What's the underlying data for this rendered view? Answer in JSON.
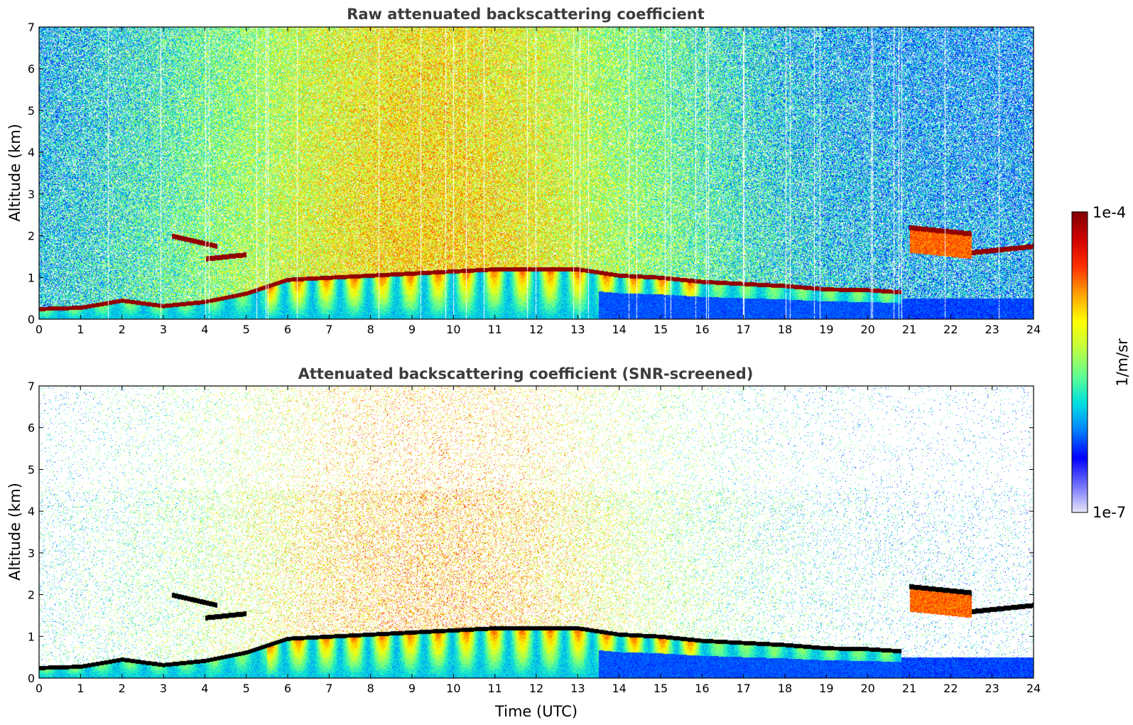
{
  "chart_data": [
    {
      "type": "heatmap",
      "title": "Raw attenuated backscattering coefficient",
      "xlabel": "",
      "ylabel": "Altitude (km)",
      "xlim": [
        0,
        24
      ],
      "ylim": [
        0,
        7
      ],
      "x_ticks": [
        "0",
        "1",
        "2",
        "3",
        "4",
        "5",
        "6",
        "7",
        "8",
        "9",
        "10",
        "11",
        "12",
        "13",
        "14",
        "15",
        "16",
        "17",
        "18",
        "19",
        "20",
        "21",
        "22",
        "23",
        "24"
      ],
      "y_ticks": [
        "0",
        "1",
        "2",
        "3",
        "4",
        "5",
        "6",
        "7"
      ],
      "screened": false
    },
    {
      "type": "heatmap",
      "title": "Attenuated backscattering coefficient (SNR-screened)",
      "xlabel": "Time (UTC)",
      "ylabel": "Altitude (km)",
      "xlim": [
        0,
        24
      ],
      "ylim": [
        0,
        7
      ],
      "x_ticks": [
        "0",
        "1",
        "2",
        "3",
        "4",
        "5",
        "6",
        "7",
        "8",
        "9",
        "10",
        "11",
        "12",
        "13",
        "14",
        "15",
        "16",
        "17",
        "18",
        "19",
        "20",
        "21",
        "22",
        "23",
        "24"
      ],
      "y_ticks": [
        "0",
        "1",
        "2",
        "3",
        "4",
        "5",
        "6",
        "7"
      ],
      "screened": true
    }
  ],
  "colorbar": {
    "label": "1/m/sr",
    "max_label": "1e-4",
    "min_label": "1e-7",
    "scale": "log",
    "colormap": "jet",
    "colors": [
      "#e8e8f8",
      "#7070ff",
      "#0000ff",
      "#0080ff",
      "#00e0e0",
      "#60ff90",
      "#c0ff40",
      "#ffff00",
      "#ffa000",
      "#ff3000",
      "#d00000",
      "#800000"
    ]
  },
  "features": {
    "cloud_layer": [
      [
        0,
        0.25
      ],
      [
        1,
        0.28
      ],
      [
        2,
        0.45
      ],
      [
        3,
        0.32
      ],
      [
        4,
        0.42
      ],
      [
        5,
        0.62
      ],
      [
        6,
        0.95
      ],
      [
        7,
        1.0
      ],
      [
        8,
        1.05
      ],
      [
        9,
        1.1
      ],
      [
        10,
        1.15
      ],
      [
        11,
        1.2
      ],
      [
        12,
        1.2
      ],
      [
        13,
        1.2
      ],
      [
        14,
        1.05
      ],
      [
        15,
        1.0
      ],
      [
        16,
        0.9
      ],
      [
        17,
        0.85
      ],
      [
        18,
        0.8
      ],
      [
        19,
        0.72
      ],
      [
        20,
        0.7
      ],
      [
        20.8,
        0.65
      ]
    ],
    "elevated_layers": [
      {
        "t": [
          3.2,
          4.3
        ],
        "h": [
          2.0,
          1.75
        ]
      },
      {
        "t": [
          4.0,
          5.0
        ],
        "h": [
          1.45,
          1.55
        ]
      },
      {
        "t": [
          21.0,
          22.5
        ],
        "h": [
          2.2,
          2.05
        ]
      },
      {
        "t": [
          22.5,
          24.0
        ],
        "h": [
          1.6,
          1.75
        ]
      }
    ]
  }
}
